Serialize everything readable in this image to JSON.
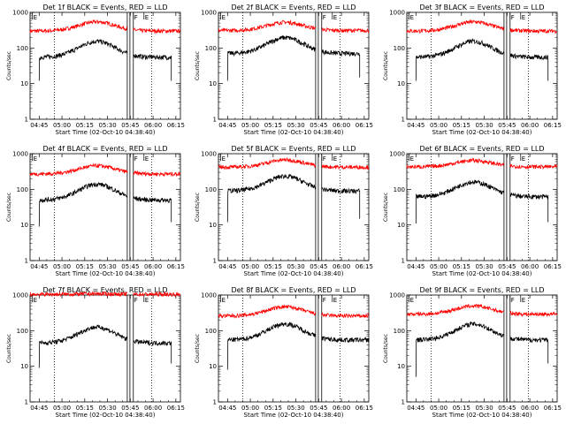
{
  "chart_data": {
    "type": "line",
    "layout": "3x3 grid",
    "x_ticks": [
      "04:45",
      "05:00",
      "05:15",
      "05:30",
      "05:45",
      "06:00",
      "06:15"
    ],
    "x_ticks_minutes": [
      0,
      15,
      30,
      45,
      60,
      75,
      90
    ],
    "xlim_minutes": [
      -6,
      93
    ],
    "xlabel": "Start Time (02-Oct-10 04:38:40)",
    "ylabel": "Counts/sec",
    "yscale": "log",
    "ylim": [
      1,
      1000
    ],
    "y_ticks": [
      "1",
      "10",
      "100",
      "1000"
    ],
    "y_tick_values": [
      1,
      10,
      100,
      1000
    ],
    "markers": [
      {
        "label": "E",
        "minute": -4.5
      },
      {
        "label": "F",
        "minute": 62
      },
      {
        "label": "E",
        "minute": 69
      }
    ],
    "dotted_lines_minutes": [
      10,
      74
    ],
    "gap_minutes": [
      58,
      62
    ],
    "series_colors": {
      "events": "#000000",
      "lld": "#ff0000"
    },
    "panels": [
      {
        "title": "Det 1f BLACK = Events, RED = LLD",
        "events": {
          "start": 0,
          "end": 87,
          "base": 55,
          "amp": 2.8,
          "end_drop": 12,
          "first": 12
        },
        "lld": {
          "start": -6,
          "end": 93,
          "base": 300,
          "amp": 1.8
        }
      },
      {
        "title": "Det 2f BLACK = Events, RED = LLD",
        "events": {
          "start": 0,
          "end": 87,
          "base": 70,
          "amp": 2.8,
          "end_drop": 15,
          "first": 12
        },
        "lld": {
          "start": -6,
          "end": 93,
          "base": 310,
          "amp": 1.7
        }
      },
      {
        "title": "Det 3f BLACK = Events, RED = LLD",
        "events": {
          "start": 0,
          "end": 87,
          "base": 55,
          "amp": 2.8,
          "end_drop": 12,
          "first": 12
        },
        "lld": {
          "start": -6,
          "end": 93,
          "base": 300,
          "amp": 1.8
        }
      },
      {
        "title": "Det 4f BLACK = Events, RED = LLD",
        "events": {
          "start": 0,
          "end": 87,
          "base": 50,
          "amp": 2.8,
          "end_drop": 12,
          "first": 9
        },
        "lld": {
          "start": -6,
          "end": 93,
          "base": 270,
          "amp": 1.7
        }
      },
      {
        "title": "Det 5f BLACK = Events, RED = LLD",
        "events": {
          "start": 0,
          "end": 87,
          "base": 90,
          "amp": 2.6,
          "end_drop": 15,
          "first": 12
        },
        "lld": {
          "start": -6,
          "end": 93,
          "base": 420,
          "amp": 1.6
        }
      },
      {
        "title": "Det 6f BLACK = Events, RED = LLD",
        "events": {
          "start": 0,
          "end": 87,
          "base": 62,
          "amp": 2.6,
          "end_drop": 12,
          "first": 11
        },
        "lld": {
          "start": -6,
          "end": 93,
          "base": 430,
          "amp": 1.5
        }
      },
      {
        "title": "Det 7f BLACK = Events, RED = LLD",
        "events": {
          "start": 0,
          "end": 87,
          "base": 45,
          "amp": 2.8,
          "end_drop": 12,
          "first": 9
        },
        "lld": {
          "start": -6,
          "end": 93,
          "base": 1050,
          "amp": 1.03
        }
      },
      {
        "title": "Det 8f BLACK = Events, RED = LLD",
        "events": {
          "start": 0,
          "end": 93,
          "base": 55,
          "amp": 2.8,
          "end_drop": 50,
          "first": 8
        },
        "lld": {
          "start": -6,
          "end": 93,
          "base": 260,
          "amp": 1.8
        }
      },
      {
        "title": "Det 9f BLACK = Events, RED = LLD",
        "events": {
          "start": 0,
          "end": 87,
          "base": 55,
          "amp": 2.8,
          "end_drop": 12,
          "first": 5
        },
        "lld": {
          "start": -6,
          "end": 93,
          "base": 290,
          "amp": 1.7
        }
      }
    ]
  }
}
